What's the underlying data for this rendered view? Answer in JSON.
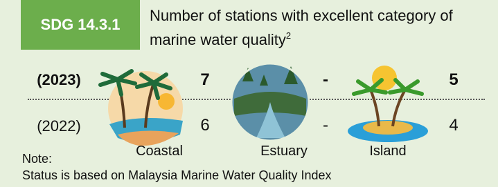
{
  "badge": "SDG 14.3.1",
  "title": "Number of stations with excellent category of marine water quality",
  "title_superscript": "2",
  "rows": [
    {
      "year": "(2023)",
      "values": [
        7,
        "-",
        5
      ]
    },
    {
      "year": "(2022)",
      "values": [
        6,
        "-",
        4
      ]
    }
  ],
  "columns": [
    "Coastal",
    "Estuary",
    "Island"
  ],
  "note": {
    "label": "Note:",
    "text": "Status is based on Malaysia Marine Water Quality Index"
  }
}
